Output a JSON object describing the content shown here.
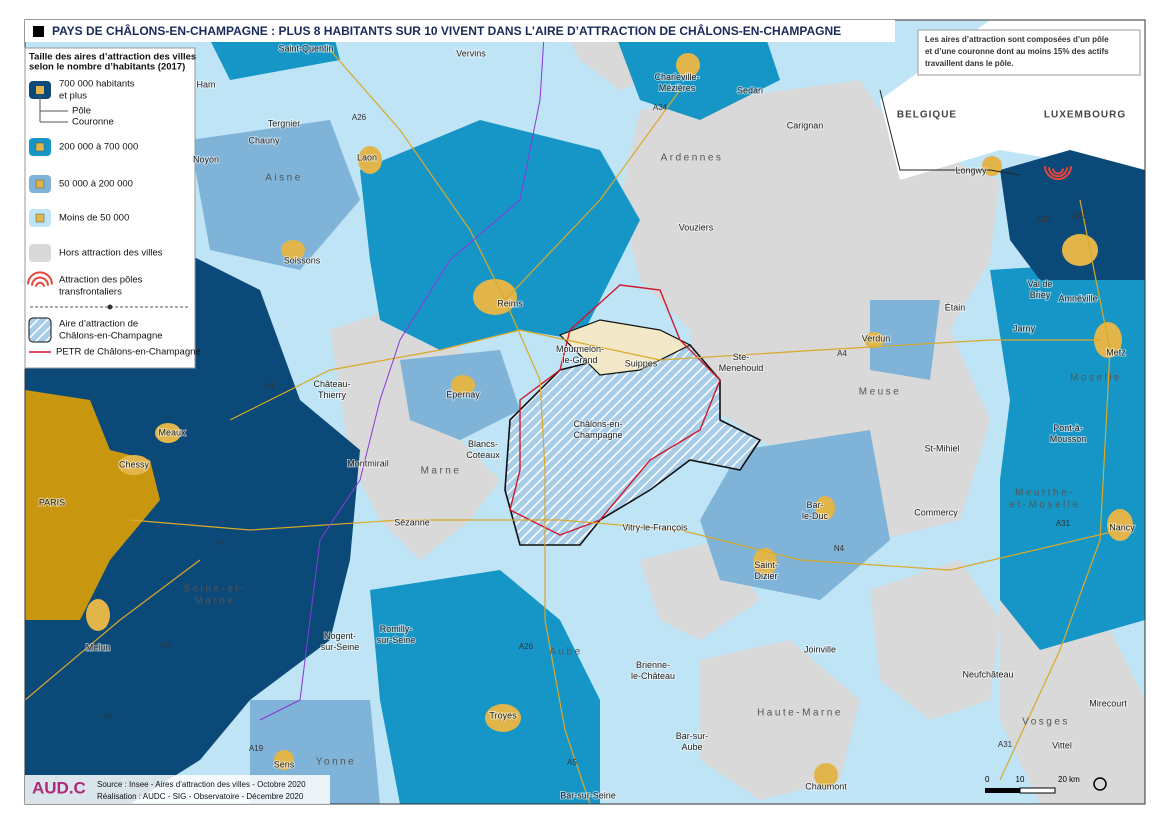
{
  "title": "PAYS DE CHÂLONS-EN-CHAMPAGNE : PLUS 8 HABITANTS SUR 10 VIVENT DANS L’AIRE D’ATTRACTION DE CHÂLONS-EN-CHAMPAGNE",
  "note": [
    "Les aires d’attraction sont composées d’un pôle",
    "et d’une couronne dont au moins 15% des actifs",
    "travaillent dans le pôle."
  ],
  "legend": {
    "title": [
      "Taille des aires d’attraction des villes",
      "selon le nombre d’habitants (2017)"
    ],
    "pole": "Pôle",
    "couronne": "Couronne",
    "items": [
      {
        "lines": [
          "700 000 habitants",
          "et plus"
        ],
        "color": "#0b4a78"
      },
      {
        "lines": [
          "200 000 à 700 000"
        ],
        "color": "#1596c6"
      },
      {
        "lines": [
          "50 000 à 200 000"
        ],
        "color": "#7fb3d8"
      },
      {
        "lines": [
          "Moins de 50 000"
        ],
        "color": "#bfe4f6"
      },
      {
        "lines": [
          "Hors attraction des villes"
        ],
        "color": "#d9d9d9"
      },
      {
        "lines": [
          "Attraction des pôles",
          "transfrontaliers"
        ],
        "color": "#e8453c"
      },
      {
        "lines": [
          "Aire d’attraction de",
          "Châlons-en-Champagne"
        ],
        "color": "#1596c6"
      },
      {
        "lines": [
          "PETR de Châlons-en-Champagne"
        ],
        "color": "#d0182b"
      }
    ]
  },
  "countries": [
    "BELGIQUE",
    "LUXEMBOURG"
  ],
  "places": [
    [
      "Saint-Quentin"
    ],
    [
      "Vervins"
    ],
    [
      "Ham"
    ],
    [
      "Charleville-",
      "Mézières"
    ],
    [
      "Sedan"
    ],
    [
      "Tergnier"
    ],
    [
      "Chauny"
    ],
    [
      "Carignan"
    ],
    [
      "Laon"
    ],
    [
      "Noyon"
    ],
    [
      "Vouziers"
    ],
    [
      "Soissons"
    ],
    [
      "Reims"
    ],
    [
      "Longwy"
    ],
    [
      "Étain"
    ],
    [
      "Val de",
      "Briey"
    ],
    [
      "Amnéville"
    ],
    [
      "Jarny"
    ],
    [
      "Verdun"
    ],
    [
      "Mourmelon-",
      "le-Grand"
    ],
    [
      "Suippes"
    ],
    [
      "Ste-",
      "Menehould"
    ],
    [
      "Metz"
    ],
    [
      "Château-",
      "Thierry"
    ],
    [
      "Épernay"
    ],
    [
      "Meaux"
    ],
    [
      "Châlons-en-",
      "Champagne"
    ],
    [
      "Blancs-",
      "Coteaux"
    ],
    [
      "St-Mihiel"
    ],
    [
      "Pont-à-",
      "Mousson"
    ],
    [
      "Chessy"
    ],
    [
      "Montmirail"
    ],
    [
      "PARIS"
    ],
    [
      "Bar-",
      "le-Duc"
    ],
    [
      "Commercy"
    ],
    [
      "Sézanne"
    ],
    [
      "Vitry-le-François"
    ],
    [
      "Nancy"
    ],
    [
      "Saint-",
      "Dizier"
    ],
    [
      "Melun"
    ],
    [
      "Nogent-",
      "sur-Seine"
    ],
    [
      "Romilly-",
      "sur-Seine"
    ],
    [
      "Joinville"
    ],
    [
      "Brienne-",
      "le-Château"
    ],
    [
      "Neufchâteau"
    ],
    [
      "Mirecourt"
    ],
    [
      "Troyes"
    ],
    [
      "Bar-sur-",
      "Aube"
    ],
    [
      "Vittel"
    ],
    [
      "Sens"
    ],
    [
      "Chaumont"
    ],
    [
      "Bar-sur-Seine"
    ]
  ],
  "regions": [
    [
      "Ardennes"
    ],
    [
      "Aisne"
    ],
    [
      "Meuse"
    ],
    [
      "Marne"
    ],
    [
      "Meurthe-",
      "et-Moselle"
    ],
    [
      "Moselle"
    ],
    [
      "Seine-et-",
      "Marne"
    ],
    [
      "Aube"
    ],
    [
      "Haute-Marne"
    ],
    [
      "Vosges"
    ],
    [
      "Yonne"
    ]
  ],
  "roads": [
    "A26",
    "A34",
    "A30",
    "A31",
    "A4",
    "A4",
    "N4",
    "N4",
    "A31",
    "A26",
    "A5",
    "A6",
    "A19",
    "A5",
    "A31"
  ],
  "source": "Source : Insee - Aires d’attraction des villes - Octobre 2020",
  "credit": "Réalisation : AUDC - SIG - Observatoire - Décembre 2020",
  "logo": "AUD.C",
  "scale": [
    "0",
    "10",
    "20 km"
  ]
}
